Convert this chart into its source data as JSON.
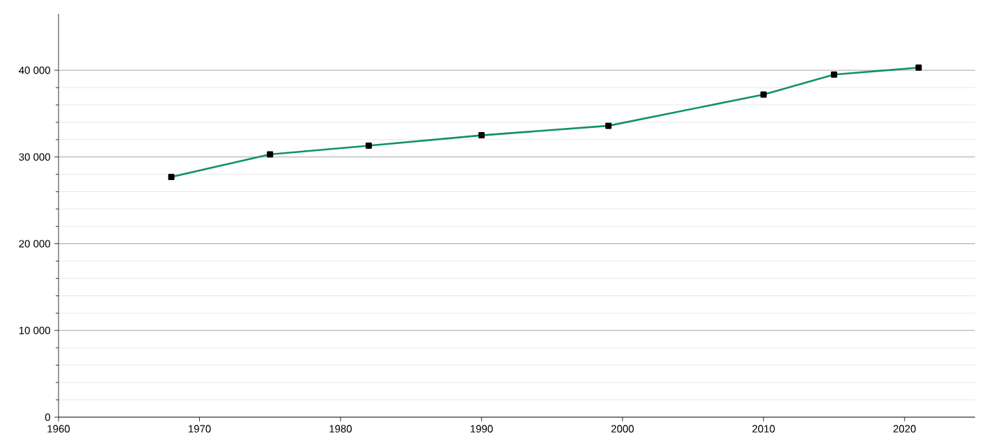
{
  "chart_data": {
    "type": "line",
    "x": [
      1968,
      1975,
      1982,
      1990,
      1999,
      2010,
      2015,
      2021
    ],
    "series": [
      {
        "color": "#12906a",
        "values": [
          27700,
          30300,
          31300,
          32500,
          33600,
          37200,
          39500,
          40300
        ]
      }
    ],
    "xlim": [
      1960,
      2025
    ],
    "xticks": [
      1960,
      1970,
      1980,
      1990,
      2000,
      2010,
      2020
    ],
    "ylim": [
      0,
      46500
    ],
    "yticks": [
      {
        "value": 0,
        "label": "0"
      },
      {
        "value": 10000,
        "label": "10 000"
      },
      {
        "value": 20000,
        "label": "20 000"
      },
      {
        "value": 30000,
        "label": "30 000"
      },
      {
        "value": 40000,
        "label": "40 000"
      }
    ],
    "grid": "y",
    "marker": "square",
    "line_style": "solid"
  }
}
